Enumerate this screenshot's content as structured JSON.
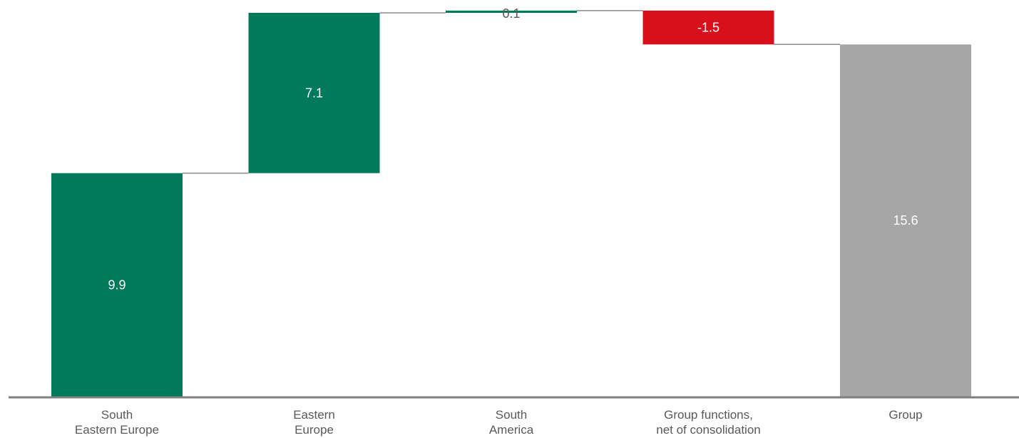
{
  "chart_data": {
    "type": "bar",
    "subtype": "waterfall",
    "title": "",
    "xlabel": "",
    "ylabel": "",
    "categories": [
      [
        "South",
        "Eastern Europe"
      ],
      [
        "Eastern",
        "Europe"
      ],
      [
        "South",
        "America"
      ],
      [
        "Group functions,",
        "net of consolidation"
      ],
      [
        "Group"
      ]
    ],
    "values": [
      9.9,
      7.1,
      0.1,
      -1.5,
      15.6
    ],
    "value_labels": [
      "9.9",
      "7.1",
      "0.1",
      "-1.5",
      "15.6"
    ],
    "is_total": [
      false,
      false,
      false,
      false,
      true
    ],
    "ylim": [
      0,
      17.0
    ],
    "grid": false,
    "colors": {
      "positive": "#007A5A",
      "negative": "#D7101B",
      "total": "#A6A6A6",
      "connector": "#8C8C8C",
      "axis": "#7F7F7F",
      "label_on_bar": "#FFFFFF",
      "label_off_bar": "#595959",
      "category_text": "#595959"
    }
  }
}
